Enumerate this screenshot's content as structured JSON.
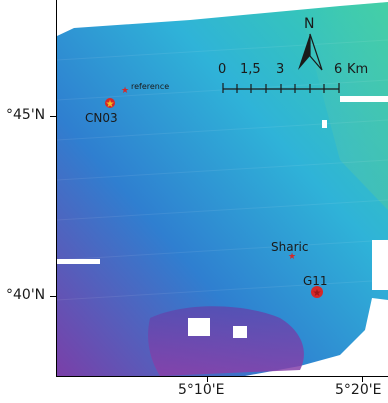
{
  "axes": {
    "lat_labels": [
      "°45'N",
      "°40'N"
    ],
    "lon_labels": [
      "5°10'E",
      "5°20'E"
    ]
  },
  "scale_bar": {
    "ticks": [
      "0",
      "1,5",
      "3",
      "6"
    ],
    "unit": "Km"
  },
  "north_arrow": {
    "letter": "N"
  },
  "sites": [
    {
      "label": "CN03",
      "marker": "star",
      "color": "#d62828"
    },
    {
      "label": "reference",
      "marker": "star",
      "color": "#d62828"
    },
    {
      "label": "Sharic",
      "marker": "star",
      "color": "#d62828"
    },
    {
      "label": "G11",
      "marker": "star",
      "color": "#d62828"
    }
  ],
  "colors": {
    "depth_shallow": "#3ad0a8",
    "depth_mid": "#2f8fd8",
    "depth_deep": "#7a3fa8",
    "marker": "#d62828"
  }
}
